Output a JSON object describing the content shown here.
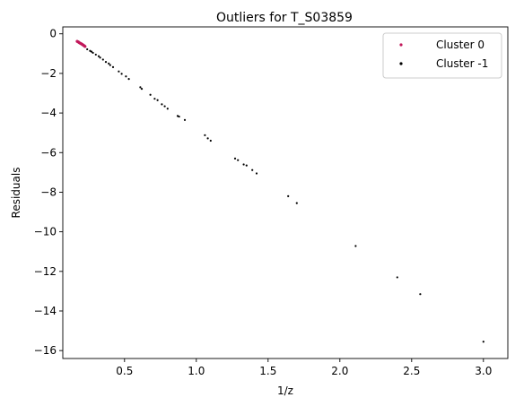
{
  "chart_data": {
    "type": "scatter",
    "title": "Outliers for T_S03859",
    "xlabel": "1/z",
    "ylabel": "Residuals",
    "xlim": [
      0.07,
      3.17
    ],
    "ylim": [
      -16.4,
      0.35
    ],
    "xticks": [
      0.5,
      1.0,
      1.5,
      2.0,
      2.5,
      3.0
    ],
    "xtick_labels": [
      "0.5",
      "1.0",
      "1.5",
      "2.0",
      "2.5",
      "3.0"
    ],
    "yticks": [
      0,
      -2,
      -4,
      -6,
      -8,
      -10,
      -12,
      -14,
      -16
    ],
    "ytick_labels": [
      "0",
      "−2",
      "−4",
      "−6",
      "−8",
      "−10",
      "−12",
      "−14",
      "−16"
    ],
    "grid": false,
    "legend_position": "top-right",
    "series": [
      {
        "name": "Cluster 0",
        "color": "#c2185b",
        "x": [
          0.17,
          0.175,
          0.18,
          0.185,
          0.19,
          0.195,
          0.2,
          0.205,
          0.21,
          0.215,
          0.22,
          0.225
        ],
        "y": [
          -0.38,
          -0.4,
          -0.42,
          -0.45,
          -0.47,
          -0.49,
          -0.51,
          -0.53,
          -0.56,
          -0.58,
          -0.61,
          -0.64
        ]
      },
      {
        "name": "Cluster -1",
        "color": "#000000",
        "x": [
          0.24,
          0.26,
          0.27,
          0.28,
          0.3,
          0.32,
          0.33,
          0.35,
          0.37,
          0.39,
          0.4,
          0.42,
          0.46,
          0.48,
          0.51,
          0.53,
          0.61,
          0.62,
          0.68,
          0.71,
          0.73,
          0.76,
          0.78,
          0.8,
          0.87,
          0.88,
          0.92,
          1.06,
          1.08,
          1.1,
          1.27,
          1.29,
          1.33,
          1.35,
          1.39,
          1.42,
          1.64,
          1.7,
          2.11,
          2.4,
          2.56,
          3.0
        ],
        "y": [
          -0.78,
          -0.86,
          -0.9,
          -0.96,
          -1.05,
          -1.13,
          -1.2,
          -1.3,
          -1.42,
          -1.5,
          -1.58,
          -1.68,
          -1.9,
          -2.02,
          -2.15,
          -2.28,
          -2.7,
          -2.78,
          -3.08,
          -3.28,
          -3.35,
          -3.56,
          -3.66,
          -3.78,
          -4.15,
          -4.18,
          -4.35,
          -5.12,
          -5.28,
          -5.4,
          -6.3,
          -6.38,
          -6.6,
          -6.65,
          -6.88,
          -7.05,
          -8.2,
          -8.55,
          -10.72,
          -12.3,
          -13.15,
          -15.55
        ]
      }
    ]
  }
}
